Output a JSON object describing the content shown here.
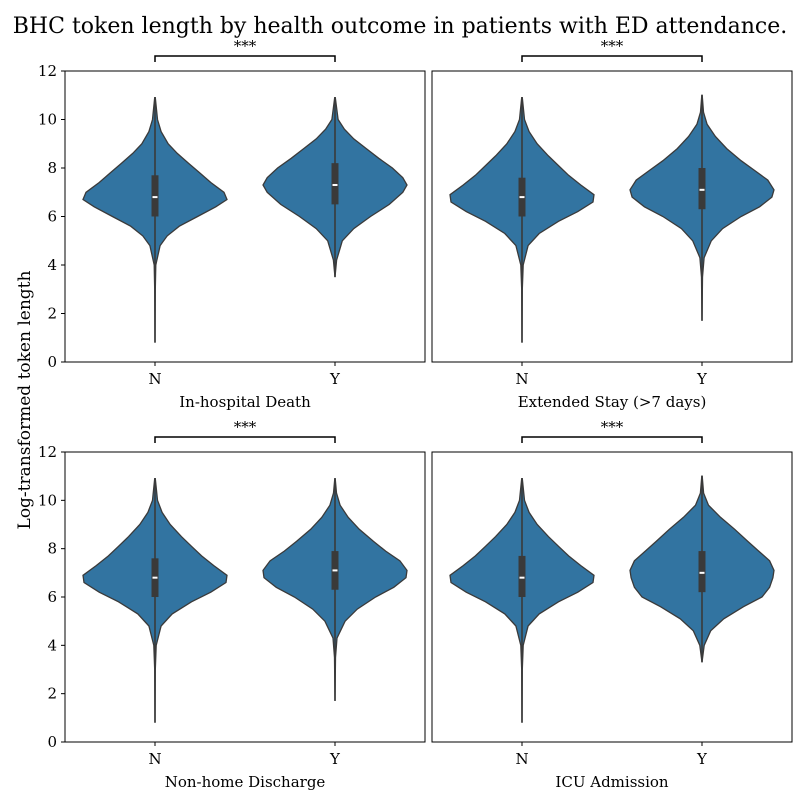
{
  "chart_data": {
    "type": "violin",
    "title": "BHC token length by health outcome in patients with ED attendance.",
    "ylabel": "Log-transformed token length",
    "ylim": [
      0,
      12
    ],
    "yticks": [
      0,
      2,
      4,
      6,
      8,
      10,
      12
    ],
    "color": "#3274a1",
    "edge_color": "#3a3a3a",
    "box_color": "#3a3a3a",
    "median_color": "#ffffff",
    "panels": [
      {
        "xlabel": "In-hospital Death",
        "categories": [
          "N",
          "Y"
        ],
        "significance": "***",
        "violins": [
          {
            "name": "N",
            "min": 0.8,
            "max": 10.9,
            "q1": 6.0,
            "median": 6.8,
            "q3": 7.7,
            "profile": [
              [
                0.8,
                0.0
              ],
              [
                3.0,
                0.3
              ],
              [
                4.0,
                0.8
              ],
              [
                4.8,
                5
              ],
              [
                5.2,
                12
              ],
              [
                5.6,
                24
              ],
              [
                6.0,
                42
              ],
              [
                6.4,
                60
              ],
              [
                6.7,
                71
              ],
              [
                7.0,
                68
              ],
              [
                7.4,
                55
              ],
              [
                7.8,
                44
              ],
              [
                8.2,
                33
              ],
              [
                8.6,
                22
              ],
              [
                9.0,
                13
              ],
              [
                9.5,
                6
              ],
              [
                10.0,
                2.5
              ],
              [
                10.9,
                0.3
              ]
            ]
          },
          {
            "name": "Y",
            "min": 3.5,
            "max": 10.9,
            "q1": 6.5,
            "median": 7.3,
            "q3": 8.2,
            "profile": [
              [
                3.5,
                0.0
              ],
              [
                4.2,
                1.5
              ],
              [
                5.0,
                7
              ],
              [
                5.5,
                18
              ],
              [
                6.0,
                34
              ],
              [
                6.5,
                52
              ],
              [
                7.0,
                65
              ],
              [
                7.3,
                69
              ],
              [
                7.6,
                65
              ],
              [
                8.0,
                55
              ],
              [
                8.4,
                42
              ],
              [
                8.8,
                30
              ],
              [
                9.2,
                18
              ],
              [
                9.6,
                9
              ],
              [
                10.0,
                3
              ],
              [
                10.9,
                0.3
              ]
            ]
          }
        ]
      },
      {
        "xlabel": "Extended Stay (>7 days)",
        "categories": [
          "N",
          "Y"
        ],
        "significance": "***",
        "violins": [
          {
            "name": "N",
            "min": 0.8,
            "max": 10.9,
            "q1": 6.0,
            "median": 6.8,
            "q3": 7.6,
            "profile": [
              [
                0.8,
                0.0
              ],
              [
                3.0,
                0.3
              ],
              [
                4.0,
                1.2
              ],
              [
                4.8,
                6
              ],
              [
                5.3,
                17
              ],
              [
                5.8,
                36
              ],
              [
                6.2,
                55
              ],
              [
                6.6,
                70
              ],
              [
                6.9,
                71
              ],
              [
                7.3,
                58
              ],
              [
                7.7,
                46
              ],
              [
                8.1,
                36
              ],
              [
                8.5,
                26
              ],
              [
                9.0,
                15
              ],
              [
                9.5,
                7
              ],
              [
                10.0,
                2.5
              ],
              [
                10.9,
                0.3
              ]
            ]
          },
          {
            "name": "Y",
            "min": 1.7,
            "max": 11.0,
            "q1": 6.3,
            "median": 7.1,
            "q3": 8.0,
            "profile": [
              [
                1.7,
                0.0
              ],
              [
                3.5,
                0.5
              ],
              [
                4.3,
                2
              ],
              [
                5.0,
                9
              ],
              [
                5.5,
                20
              ],
              [
                6.0,
                38
              ],
              [
                6.4,
                56
              ],
              [
                6.8,
                68
              ],
              [
                7.1,
                70
              ],
              [
                7.5,
                64
              ],
              [
                7.9,
                51
              ],
              [
                8.3,
                38
              ],
              [
                8.8,
                24
              ],
              [
                9.3,
                13
              ],
              [
                9.8,
                5
              ],
              [
                10.3,
                1.5
              ],
              [
                11.0,
                0.2
              ]
            ]
          }
        ]
      },
      {
        "xlabel": "Non-home Discharge",
        "categories": [
          "N",
          "Y"
        ],
        "significance": "***",
        "violins": [
          {
            "name": "N",
            "min": 0.8,
            "max": 10.9,
            "q1": 6.0,
            "median": 6.8,
            "q3": 7.6,
            "profile": [
              [
                0.8,
                0.0
              ],
              [
                3.0,
                0.3
              ],
              [
                4.0,
                1.2
              ],
              [
                4.8,
                6
              ],
              [
                5.3,
                17
              ],
              [
                5.8,
                36
              ],
              [
                6.2,
                55
              ],
              [
                6.6,
                70
              ],
              [
                6.9,
                71
              ],
              [
                7.3,
                58
              ],
              [
                7.7,
                46
              ],
              [
                8.1,
                36
              ],
              [
                8.5,
                26
              ],
              [
                9.0,
                15
              ],
              [
                9.5,
                7
              ],
              [
                10.0,
                2.5
              ],
              [
                10.9,
                0.3
              ]
            ]
          },
          {
            "name": "Y",
            "min": 1.7,
            "max": 10.9,
            "q1": 6.3,
            "median": 7.1,
            "q3": 7.9,
            "profile": [
              [
                1.7,
                0.0
              ],
              [
                3.5,
                0.5
              ],
              [
                4.3,
                2
              ],
              [
                5.0,
                10
              ],
              [
                5.5,
                22
              ],
              [
                6.0,
                40
              ],
              [
                6.4,
                58
              ],
              [
                6.8,
                70
              ],
              [
                7.1,
                71
              ],
              [
                7.5,
                64
              ],
              [
                7.9,
                50
              ],
              [
                8.3,
                38
              ],
              [
                8.8,
                24
              ],
              [
                9.3,
                13
              ],
              [
                9.8,
                5
              ],
              [
                10.3,
                1.5
              ],
              [
                10.9,
                0.2
              ]
            ]
          }
        ]
      },
      {
        "xlabel": "ICU Admission",
        "categories": [
          "N",
          "Y"
        ],
        "significance": "***",
        "violins": [
          {
            "name": "N",
            "min": 0.8,
            "max": 10.9,
            "q1": 6.0,
            "median": 6.8,
            "q3": 7.7,
            "profile": [
              [
                0.8,
                0.0
              ],
              [
                3.0,
                0.3
              ],
              [
                4.0,
                1.2
              ],
              [
                4.8,
                6
              ],
              [
                5.3,
                17
              ],
              [
                5.8,
                36
              ],
              [
                6.2,
                55
              ],
              [
                6.6,
                70
              ],
              [
                6.9,
                71
              ],
              [
                7.3,
                58
              ],
              [
                7.7,
                46
              ],
              [
                8.1,
                36
              ],
              [
                8.5,
                26
              ],
              [
                9.0,
                15
              ],
              [
                9.5,
                7
              ],
              [
                10.0,
                2.5
              ],
              [
                10.9,
                0.3
              ]
            ]
          },
          {
            "name": "Y",
            "min": 3.3,
            "max": 11.0,
            "q1": 6.2,
            "median": 7.0,
            "q3": 7.9,
            "profile": [
              [
                3.3,
                0.0
              ],
              [
                4.0,
                2
              ],
              [
                4.6,
                8
              ],
              [
                5.1,
                20
              ],
              [
                5.6,
                38
              ],
              [
                6.0,
                55
              ],
              [
                6.4,
                62
              ],
              [
                6.8,
                65
              ],
              [
                7.1,
                66
              ],
              [
                7.5,
                62
              ],
              [
                7.9,
                52
              ],
              [
                8.3,
                42
              ],
              [
                8.8,
                30
              ],
              [
                9.3,
                17
              ],
              [
                9.8,
                6
              ],
              [
                10.3,
                1.5
              ],
              [
                11.0,
                0.2
              ]
            ]
          }
        ]
      }
    ]
  }
}
